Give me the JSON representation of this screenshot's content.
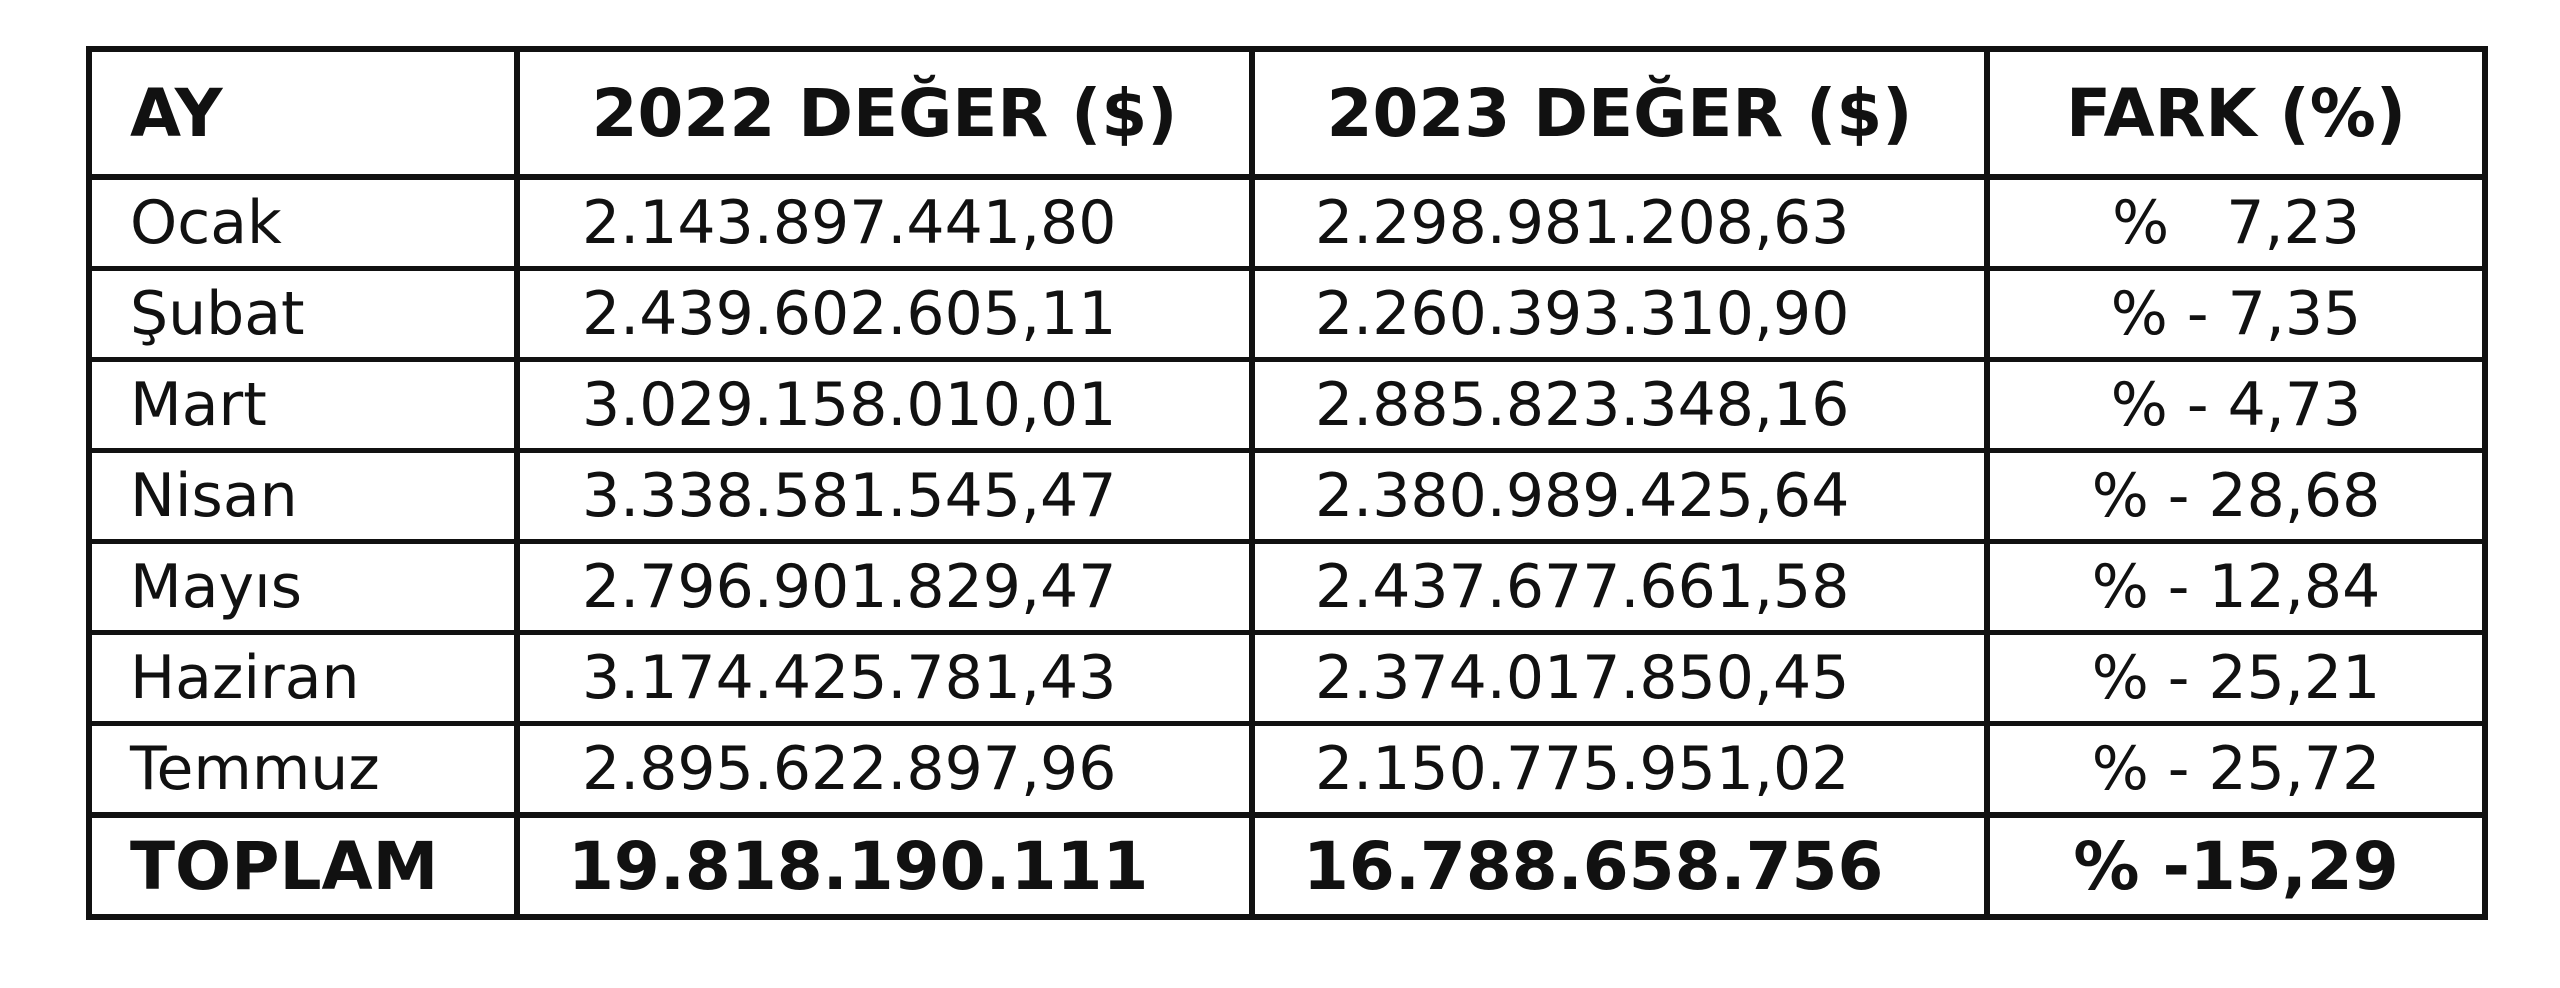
{
  "table": {
    "headers": [
      "AY",
      "2022 DEĞER ($)",
      "2023 DEĞER ($)",
      "FARK (%)"
    ],
    "rows": [
      {
        "month": "Ocak",
        "v2022": "2.143.897.441,80",
        "v2023": "2.298.981.208,63",
        "diff": "%   7,23"
      },
      {
        "month": "Şubat",
        "v2022": "2.439.602.605,11",
        "v2023": "2.260.393.310,90",
        "diff": "% - 7,35"
      },
      {
        "month": "Mart",
        "v2022": "3.029.158.010,01",
        "v2023": "2.885.823.348,16",
        "diff": "% - 4,73"
      },
      {
        "month": "Nisan",
        "v2022": "3.338.581.545,47",
        "v2023": "2.380.989.425,64",
        "diff": "% - 28,68"
      },
      {
        "month": "Mayıs",
        "v2022": "2.796.901.829,47",
        "v2023": "2.437.677.661,58",
        "diff": "% - 12,84"
      },
      {
        "month": "Haziran",
        "v2022": "3.174.425.781,43",
        "v2023": "2.374.017.850,45",
        "diff": "% - 25,21"
      },
      {
        "month": "Temmuz",
        "v2022": "2.895.622.897,96",
        "v2023": "2.150.775.951,02",
        "diff": "% - 25,72"
      }
    ],
    "total": {
      "month": "TOPLAM",
      "v2022": "19.818.190.111",
      "v2023": "16.788.658.756",
      "diff": "% -15,29"
    }
  }
}
